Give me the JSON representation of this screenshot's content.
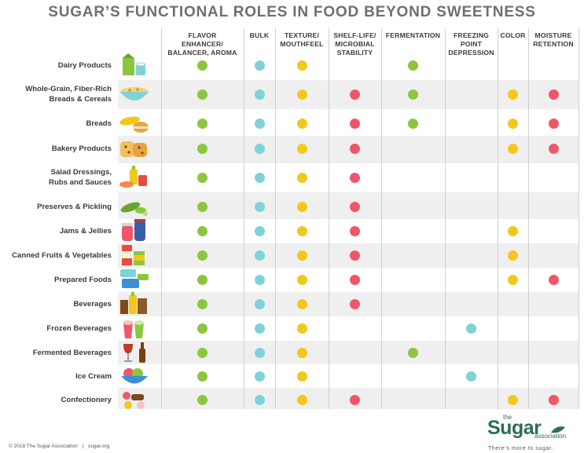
{
  "chart_data": {
    "type": "table",
    "title": "SUGAR’S FUNCTIONAL ROLES IN FOOD BEYOND SWEETNESS",
    "columns": [
      {
        "key": "flavor",
        "label": "FLAVOR ENHANCER/ BALANCER, AROMA",
        "lines": [
          "FLAVOR",
          "ENHANCER/",
          "BALANCER, AROMA"
        ],
        "color": "#8cc63f"
      },
      {
        "key": "bulk",
        "label": "BULK",
        "lines": [
          "BULK"
        ],
        "color": "#7fd2d8"
      },
      {
        "key": "texture",
        "label": "TEXTURE/ MOUTHFEEL",
        "lines": [
          "TEXTURE/",
          "MOUTHFEEL"
        ],
        "color": "#f2c81c"
      },
      {
        "key": "shelf_life",
        "label": "SHELF-LIFE/ MICROBIAL STABILITY",
        "lines": [
          "SHELF-LIFE/",
          "MICROBIAL",
          "STABILITY"
        ],
        "color": "#f0566a"
      },
      {
        "key": "fermentation",
        "label": "FERMENTATION",
        "lines": [
          "FERMENTATION"
        ],
        "color": "#8cc63f"
      },
      {
        "key": "freezing",
        "label": "FREEZING POINT DEPRESSION",
        "lines": [
          "FREEZING",
          "POINT",
          "DEPRESSION"
        ],
        "color": "#7fd2d8"
      },
      {
        "key": "color",
        "label": "COLOR",
        "lines": [
          "COLOR"
        ],
        "color": "#f2c81c"
      },
      {
        "key": "moisture",
        "label": "MOISTURE RETENTION",
        "lines": [
          "MOISTURE",
          "RETENTION"
        ],
        "color": "#f0566a"
      }
    ],
    "rows": [
      {
        "label": "Dairy Products",
        "lines": [
          "Dairy Products"
        ],
        "icon": "milk-carton-icon",
        "roles": [
          1,
          1,
          1,
          0,
          1,
          0,
          0,
          0
        ]
      },
      {
        "label": "Whole-Grain, Fiber-Rich Breads & Cereals",
        "lines": [
          "Whole-Grain, Fiber-Rich",
          "Breads & Cereals"
        ],
        "icon": "cereal-bowl-icon",
        "roles": [
          1,
          1,
          1,
          1,
          1,
          0,
          1,
          1
        ]
      },
      {
        "label": "Breads",
        "lines": [
          "Breads"
        ],
        "icon": "bread-loaf-icon",
        "roles": [
          1,
          1,
          1,
          1,
          1,
          0,
          1,
          1
        ]
      },
      {
        "label": "Bakery Products",
        "lines": [
          "Bakery Products"
        ],
        "icon": "cookies-icon",
        "roles": [
          1,
          1,
          1,
          1,
          0,
          0,
          1,
          1
        ]
      },
      {
        "label": "Salad Dressings, Rubs and Sauces",
        "lines": [
          "Salad Dressings,",
          "Rubs and Sauces"
        ],
        "icon": "sauce-bottles-icon",
        "roles": [
          1,
          1,
          1,
          1,
          0,
          0,
          0,
          0
        ]
      },
      {
        "label": "Preserves & Pickling",
        "lines": [
          "Preserves & Pickling"
        ],
        "icon": "pickles-icon",
        "roles": [
          1,
          1,
          1,
          1,
          0,
          0,
          0,
          0
        ]
      },
      {
        "label": "Jams & Jellies",
        "lines": [
          "Jams & Jellies"
        ],
        "icon": "jam-jars-icon",
        "roles": [
          1,
          1,
          1,
          1,
          0,
          0,
          1,
          0
        ]
      },
      {
        "label": "Canned Fruits & Vegetables",
        "lines": [
          "Canned Fruits & Vegetables"
        ],
        "icon": "cans-icon",
        "roles": [
          1,
          1,
          1,
          1,
          0,
          0,
          1,
          0
        ]
      },
      {
        "label": "Prepared Foods",
        "lines": [
          "Prepared Foods"
        ],
        "icon": "food-containers-icon",
        "roles": [
          1,
          1,
          1,
          1,
          0,
          0,
          1,
          1
        ]
      },
      {
        "label": "Beverages",
        "lines": [
          "Beverages"
        ],
        "icon": "drinks-icon",
        "roles": [
          1,
          1,
          1,
          1,
          0,
          0,
          0,
          0
        ]
      },
      {
        "label": "Frozen Beverages",
        "lines": [
          "Frozen Beverages"
        ],
        "icon": "frozen-drinks-icon",
        "roles": [
          1,
          1,
          1,
          0,
          0,
          1,
          0,
          0
        ]
      },
      {
        "label": "Fermented Beverages",
        "lines": [
          "Fermented Beverages"
        ],
        "icon": "wine-beer-icon",
        "roles": [
          1,
          1,
          1,
          0,
          1,
          0,
          0,
          0
        ]
      },
      {
        "label": "Ice Cream",
        "lines": [
          "Ice Cream"
        ],
        "icon": "ice-cream-bowl-icon",
        "roles": [
          1,
          1,
          1,
          0,
          0,
          1,
          0,
          0
        ]
      },
      {
        "label": "Confectionery",
        "lines": [
          "Confectionery"
        ],
        "icon": "candies-icon",
        "roles": [
          1,
          1,
          1,
          1,
          0,
          0,
          1,
          1
        ]
      }
    ],
    "grid": true,
    "stripe_color": "#efefef"
  },
  "footer": {
    "copyright": "© 2018 The Sugar Association",
    "separator": "|",
    "url": "sugar.org"
  },
  "logo": {
    "the": "the",
    "name": "Sugar",
    "association": "association",
    "tagline": "There’s more to sugar."
  }
}
